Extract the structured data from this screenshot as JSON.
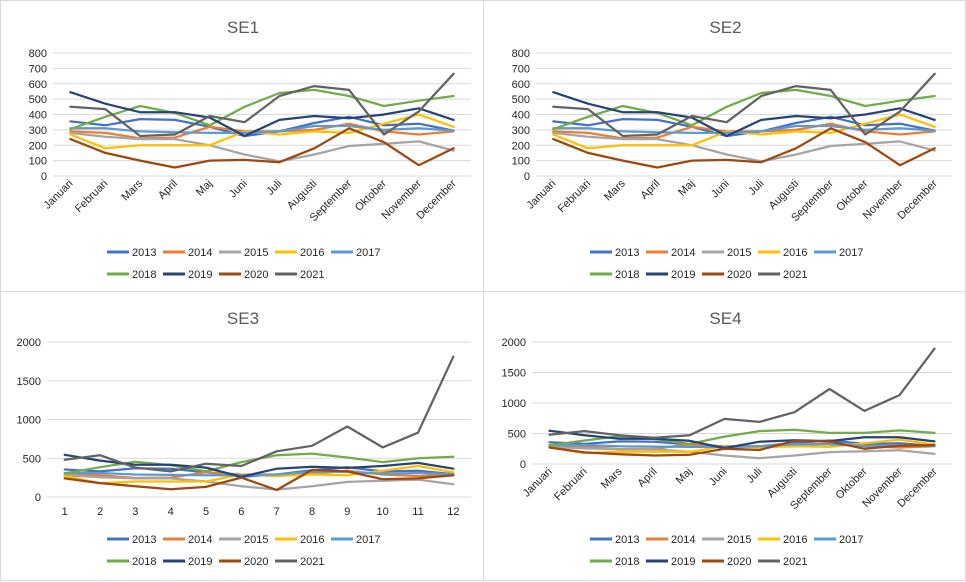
{
  "months": [
    "Januari",
    "Februari",
    "Mars",
    "April",
    "Maj",
    "Juni",
    "Juli",
    "Augusti",
    "September",
    "Oktober",
    "November",
    "December"
  ],
  "numbers": [
    "1",
    "2",
    "3",
    "4",
    "5",
    "6",
    "7",
    "8",
    "9",
    "10",
    "11",
    "12"
  ],
  "years": [
    "2013",
    "2014",
    "2015",
    "2016",
    "2017",
    "2018",
    "2019",
    "2020",
    "2021"
  ],
  "colors": {
    "2013": "#4472c4",
    "2014": "#ed7d31",
    "2015": "#a5a5a5",
    "2016": "#ffc000",
    "2017": "#5b9bd5",
    "2018": "#70ad47",
    "2019": "#264478",
    "2020": "#9e480e",
    "2021": "#636363"
  },
  "chart_data": [
    {
      "type": "line",
      "title": "SE1",
      "xlabel": "",
      "ylabel": "",
      "ylim": [
        0,
        800
      ],
      "yticks": [
        "0",
        "100",
        "200",
        "300",
        "400",
        "500",
        "600",
        "700",
        "800"
      ],
      "xtick_style": "months",
      "legend": "bottom",
      "series": [
        {
          "name": "2013",
          "values": [
            355,
            330,
            370,
            365,
            320,
            260,
            290,
            345,
            385,
            330,
            340,
            295
          ]
        },
        {
          "name": "2014",
          "values": [
            290,
            280,
            245,
            250,
            320,
            290,
            290,
            300,
            340,
            290,
            270,
            290
          ]
        },
        {
          "name": "2015",
          "values": [
            280,
            255,
            240,
            240,
            200,
            140,
            95,
            140,
            195,
            210,
            225,
            165
          ]
        },
        {
          "name": "2016",
          "values": [
            270,
            180,
            200,
            200,
            200,
            290,
            270,
            290,
            280,
            340,
            400,
            320
          ]
        },
        {
          "name": "2017",
          "values": [
            310,
            310,
            290,
            285,
            280,
            280,
            290,
            325,
            325,
            300,
            310,
            295
          ]
        },
        {
          "name": "2018",
          "values": [
            305,
            385,
            455,
            410,
            330,
            450,
            540,
            560,
            520,
            455,
            490,
            520
          ]
        },
        {
          "name": "2019",
          "values": [
            545,
            470,
            415,
            415,
            380,
            260,
            365,
            390,
            375,
            400,
            440,
            365
          ]
        },
        {
          "name": "2020",
          "values": [
            240,
            150,
            100,
            55,
            100,
            105,
            90,
            180,
            310,
            220,
            70,
            180
          ]
        },
        {
          "name": "2021",
          "values": [
            450,
            435,
            260,
            270,
            390,
            350,
            520,
            585,
            560,
            270,
            420,
            665
          ]
        }
      ]
    },
    {
      "type": "line",
      "title": "SE2",
      "xlabel": "",
      "ylabel": "",
      "ylim": [
        0,
        800
      ],
      "yticks": [
        "0",
        "100",
        "200",
        "300",
        "400",
        "500",
        "600",
        "700",
        "800"
      ],
      "xtick_style": "months",
      "legend": "bottom",
      "series": [
        {
          "name": "2013",
          "values": [
            355,
            330,
            370,
            365,
            320,
            260,
            290,
            345,
            385,
            330,
            340,
            295
          ]
        },
        {
          "name": "2014",
          "values": [
            290,
            280,
            245,
            250,
            320,
            290,
            290,
            300,
            340,
            290,
            270,
            290
          ]
        },
        {
          "name": "2015",
          "values": [
            280,
            255,
            240,
            240,
            200,
            140,
            95,
            140,
            195,
            210,
            225,
            165
          ]
        },
        {
          "name": "2016",
          "values": [
            270,
            180,
            200,
            200,
            200,
            290,
            270,
            290,
            280,
            340,
            400,
            320
          ]
        },
        {
          "name": "2017",
          "values": [
            310,
            310,
            290,
            285,
            280,
            280,
            290,
            325,
            325,
            300,
            310,
            295
          ]
        },
        {
          "name": "2018",
          "values": [
            305,
            385,
            455,
            410,
            330,
            450,
            540,
            560,
            520,
            455,
            490,
            520
          ]
        },
        {
          "name": "2019",
          "values": [
            545,
            470,
            415,
            415,
            380,
            260,
            365,
            390,
            375,
            400,
            440,
            365
          ]
        },
        {
          "name": "2020",
          "values": [
            240,
            150,
            100,
            55,
            100,
            105,
            90,
            180,
            310,
            220,
            70,
            180
          ]
        },
        {
          "name": "2021",
          "values": [
            450,
            435,
            260,
            270,
            390,
            350,
            520,
            585,
            560,
            270,
            420,
            665
          ]
        }
      ]
    },
    {
      "type": "line",
      "title": "SE3",
      "xlabel": "",
      "ylabel": "",
      "ylim": [
        0,
        2000
      ],
      "yticks": [
        "0",
        "500",
        "1000",
        "1500",
        "2000"
      ],
      "xtick_style": "numbers",
      "legend": "bottom",
      "series": [
        {
          "name": "2013",
          "values": [
            355,
            330,
            370,
            365,
            320,
            260,
            290,
            345,
            385,
            330,
            340,
            295
          ]
        },
        {
          "name": "2014",
          "values": [
            290,
            280,
            245,
            250,
            320,
            290,
            290,
            300,
            340,
            290,
            270,
            290
          ]
        },
        {
          "name": "2015",
          "values": [
            280,
            255,
            240,
            240,
            200,
            140,
            95,
            140,
            195,
            210,
            225,
            165
          ]
        },
        {
          "name": "2016",
          "values": [
            270,
            180,
            200,
            200,
            200,
            290,
            270,
            290,
            280,
            340,
            400,
            320
          ]
        },
        {
          "name": "2017",
          "values": [
            310,
            310,
            290,
            285,
            280,
            280,
            290,
            325,
            325,
            300,
            310,
            295
          ]
        },
        {
          "name": "2018",
          "values": [
            305,
            385,
            455,
            410,
            330,
            450,
            540,
            560,
            510,
            450,
            500,
            520
          ]
        },
        {
          "name": "2019",
          "values": [
            545,
            470,
            415,
            415,
            380,
            260,
            365,
            390,
            375,
            400,
            440,
            365
          ]
        },
        {
          "name": "2020",
          "values": [
            240,
            180,
            140,
            100,
            130,
            250,
            90,
            350,
            330,
            230,
            240,
            280
          ]
        },
        {
          "name": "2021",
          "values": [
            480,
            540,
            380,
            330,
            430,
            400,
            590,
            660,
            910,
            640,
            830,
            1810
          ]
        }
      ]
    },
    {
      "type": "line",
      "title": "SE4",
      "xlabel": "",
      "ylabel": "",
      "ylim": [
        0,
        2000
      ],
      "yticks": [
        "0",
        "500",
        "1000",
        "1500",
        "2000"
      ],
      "xtick_style": "months",
      "legend": "bottom",
      "series": [
        {
          "name": "2013",
          "values": [
            355,
            330,
            370,
            365,
            320,
            260,
            290,
            345,
            385,
            330,
            340,
            295
          ]
        },
        {
          "name": "2014",
          "values": [
            290,
            280,
            245,
            250,
            320,
            290,
            290,
            300,
            340,
            290,
            270,
            290
          ]
        },
        {
          "name": "2015",
          "values": [
            280,
            255,
            240,
            240,
            200,
            140,
            95,
            140,
            195,
            210,
            225,
            165
          ]
        },
        {
          "name": "2016",
          "values": [
            270,
            180,
            200,
            200,
            200,
            290,
            270,
            290,
            280,
            340,
            400,
            320
          ]
        },
        {
          "name": "2017",
          "values": [
            310,
            310,
            290,
            285,
            280,
            280,
            290,
            325,
            325,
            300,
            310,
            295
          ]
        },
        {
          "name": "2018",
          "values": [
            305,
            385,
            455,
            410,
            330,
            450,
            540,
            560,
            510,
            510,
            550,
            510
          ]
        },
        {
          "name": "2019",
          "values": [
            545,
            470,
            415,
            415,
            380,
            260,
            365,
            390,
            375,
            440,
            440,
            370
          ]
        },
        {
          "name": "2020",
          "values": [
            270,
            190,
            160,
            140,
            150,
            250,
            230,
            380,
            370,
            250,
            300,
            310
          ]
        },
        {
          "name": "2021",
          "values": [
            480,
            540,
            470,
            430,
            470,
            740,
            690,
            850,
            1230,
            870,
            1130,
            1890
          ]
        }
      ]
    }
  ]
}
